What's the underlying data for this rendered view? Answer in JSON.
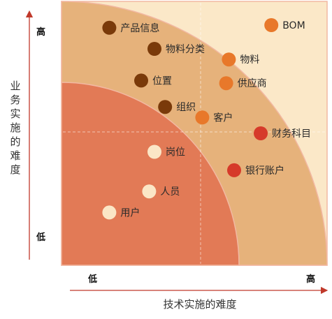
{
  "chart_data": {
    "type": "scatter",
    "xlabel": "技术实施的难度",
    "ylabel": "业务实施的难度",
    "x_ticks": [
      "低",
      "高"
    ],
    "y_ticks": [
      "高",
      "低"
    ],
    "xlim": [
      0,
      10
    ],
    "ylim": [
      0,
      10
    ],
    "points": [
      {
        "label": "产品信息",
        "x": 1.8,
        "y": 9.0,
        "color": "#7a3a0a"
      },
      {
        "label": "物料分类",
        "x": 3.5,
        "y": 8.2,
        "color": "#7a3a0a"
      },
      {
        "label": "位置",
        "x": 3.0,
        "y": 7.0,
        "color": "#7a3a0a"
      },
      {
        "label": "组织",
        "x": 3.9,
        "y": 6.0,
        "color": "#7a3a0a"
      },
      {
        "label": "BOM",
        "x": 7.9,
        "y": 9.1,
        "color": "#e8782a"
      },
      {
        "label": "物料",
        "x": 6.3,
        "y": 7.8,
        "color": "#e8782a"
      },
      {
        "label": "供应商",
        "x": 6.2,
        "y": 6.9,
        "color": "#e8782a"
      },
      {
        "label": "客户",
        "x": 5.3,
        "y": 5.6,
        "color": "#e8782a"
      },
      {
        "label": "财务科目",
        "x": 7.5,
        "y": 5.0,
        "color": "#d63a2a"
      },
      {
        "label": "银行账户",
        "x": 6.5,
        "y": 3.6,
        "color": "#d63a2a"
      },
      {
        "label": "岗位",
        "x": 3.5,
        "y": 4.3,
        "color": "#fbe6c6"
      },
      {
        "label": "人员",
        "x": 3.3,
        "y": 2.8,
        "color": "#fbe6c6"
      },
      {
        "label": "用户",
        "x": 1.8,
        "y": 2.0,
        "color": "#fbe6c6"
      }
    ],
    "zones": {
      "outer_color": "#fbe8c8",
      "middle_color": "#e6b27b",
      "inner_color": "#e27a56",
      "edge_color": "#f2b8a2"
    },
    "grid": "dashed quadrant lines"
  }
}
